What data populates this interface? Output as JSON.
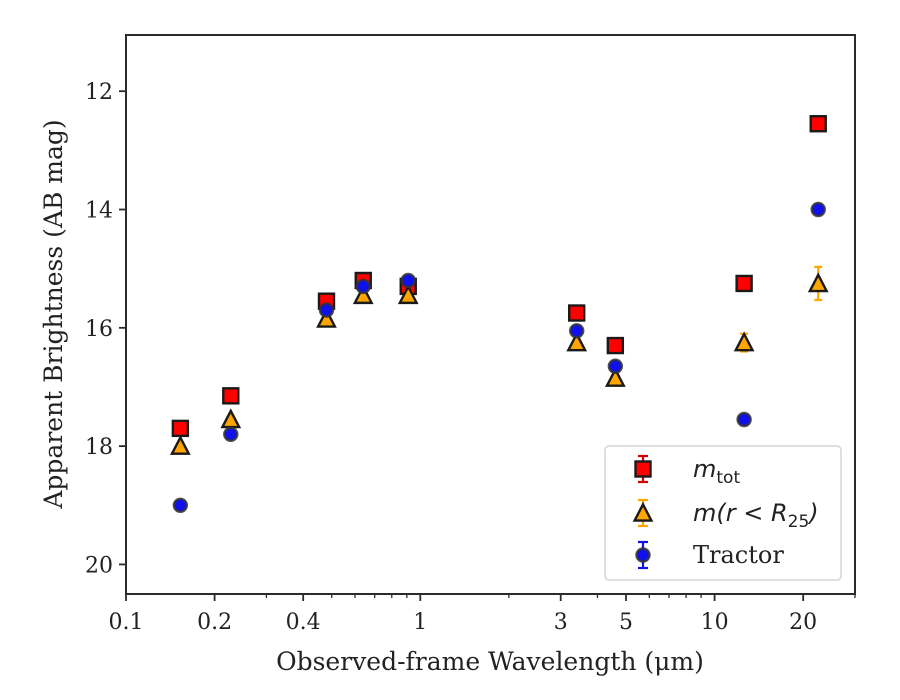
{
  "chart_data": {
    "type": "scatter",
    "xlabel": "Observed-frame Wavelength (μm)",
    "ylabel": "Apparent Brightness (AB mag)",
    "x_scale": "log",
    "xlim": [
      0.1,
      30
    ],
    "ylim": [
      20.5,
      11.05
    ],
    "y_inverted": true,
    "x_ticks": [
      {
        "value": 0.1,
        "label": "0.1"
      },
      {
        "value": 0.2,
        "label": "0.2"
      },
      {
        "value": 0.4,
        "label": "0.4"
      },
      {
        "value": 1,
        "label": "1"
      },
      {
        "value": 3,
        "label": "3"
      },
      {
        "value": 5,
        "label": "5"
      },
      {
        "value": 10,
        "label": "10"
      },
      {
        "value": 20,
        "label": "20"
      }
    ],
    "y_ticks": [
      {
        "value": 12,
        "label": "12"
      },
      {
        "value": 14,
        "label": "14"
      },
      {
        "value": 16,
        "label": "16"
      },
      {
        "value": 18,
        "label": "18"
      },
      {
        "value": 20,
        "label": "20"
      }
    ],
    "legend_position": "lower-right",
    "series": [
      {
        "name": "m_tot",
        "legend_math": "m",
        "legend_sub": "tot",
        "marker": "square",
        "color": "#ff0000",
        "edge_color": "#1a1a1a",
        "err_color": "#d40000",
        "points": [
          {
            "x": 0.153,
            "y": 17.7,
            "err": 0.05
          },
          {
            "x": 0.227,
            "y": 17.15,
            "err": 0.05
          },
          {
            "x": 0.48,
            "y": 15.55,
            "err": 0.05
          },
          {
            "x": 0.64,
            "y": 15.2,
            "err": 0.05
          },
          {
            "x": 0.91,
            "y": 15.3,
            "err": 0.05
          },
          {
            "x": 3.4,
            "y": 15.75,
            "err": 0.05
          },
          {
            "x": 4.6,
            "y": 16.3,
            "err": 0.05
          },
          {
            "x": 12.6,
            "y": 15.25,
            "err": 0.05
          },
          {
            "x": 22.5,
            "y": 12.55,
            "err": 0.05
          }
        ]
      },
      {
        "name": "m(r < R25)",
        "legend_math": "m(r < R",
        "legend_sub": "25",
        "legend_tail": ")",
        "marker": "triangle",
        "color": "#ffa500",
        "edge_color": "#1a1a1a",
        "err_color": "#ffa500",
        "points": [
          {
            "x": 0.153,
            "y": 18.0,
            "err": 0.05
          },
          {
            "x": 0.227,
            "y": 17.55,
            "err": 0.05
          },
          {
            "x": 0.48,
            "y": 15.85,
            "err": 0.05
          },
          {
            "x": 0.64,
            "y": 15.45,
            "err": 0.05
          },
          {
            "x": 0.91,
            "y": 15.45,
            "err": 0.05
          },
          {
            "x": 3.4,
            "y": 16.25,
            "err": 0.05
          },
          {
            "x": 4.6,
            "y": 16.85,
            "err": 0.05
          },
          {
            "x": 12.6,
            "y": 16.25,
            "err": 0.15
          },
          {
            "x": 22.5,
            "y": 15.25,
            "err": 0.28
          }
        ]
      },
      {
        "name": "Tractor",
        "marker": "circle",
        "color": "#1010ee",
        "edge_color": "#333333",
        "err_color": "#1010ee",
        "points": [
          {
            "x": 0.153,
            "y": 19.0,
            "err": 0.05
          },
          {
            "x": 0.227,
            "y": 17.8,
            "err": 0.05
          },
          {
            "x": 0.48,
            "y": 15.7,
            "err": 0.05
          },
          {
            "x": 0.64,
            "y": 15.3,
            "err": 0.05
          },
          {
            "x": 0.91,
            "y": 15.2,
            "err": 0.05
          },
          {
            "x": 3.4,
            "y": 16.05,
            "err": 0.05
          },
          {
            "x": 4.6,
            "y": 16.65,
            "err": 0.05
          },
          {
            "x": 12.6,
            "y": 17.55,
            "err": 0.05
          },
          {
            "x": 22.5,
            "y": 14.0,
            "err": 0.05
          }
        ]
      }
    ]
  }
}
